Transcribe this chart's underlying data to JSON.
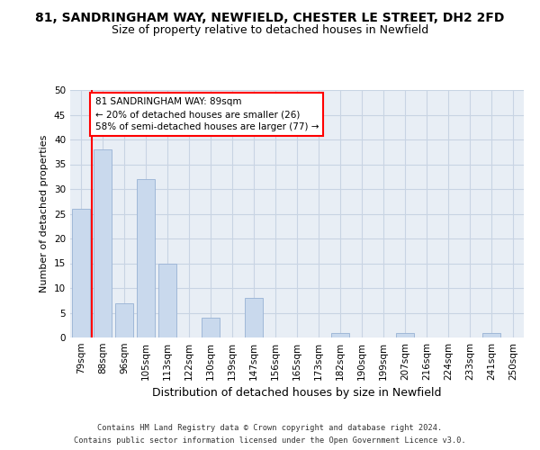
{
  "title": "81, SANDRINGHAM WAY, NEWFIELD, CHESTER LE STREET, DH2 2FD",
  "subtitle": "Size of property relative to detached houses in Newfield",
  "xlabel": "Distribution of detached houses by size in Newfield",
  "ylabel": "Number of detached properties",
  "categories": [
    "79sqm",
    "88sqm",
    "96sqm",
    "105sqm",
    "113sqm",
    "122sqm",
    "130sqm",
    "139sqm",
    "147sqm",
    "156sqm",
    "165sqm",
    "173sqm",
    "182sqm",
    "190sqm",
    "199sqm",
    "207sqm",
    "216sqm",
    "224sqm",
    "233sqm",
    "241sqm",
    "250sqm"
  ],
  "values": [
    26,
    38,
    7,
    32,
    15,
    0,
    4,
    0,
    8,
    0,
    0,
    0,
    1,
    0,
    0,
    1,
    0,
    0,
    0,
    1,
    0
  ],
  "bar_color": "#c9d9ed",
  "bar_edge_color": "#a0b8d8",
  "property_line_color": "red",
  "annotation_text": "81 SANDRINGHAM WAY: 89sqm\n← 20% of detached houses are smaller (26)\n58% of semi-detached houses are larger (77) →",
  "annotation_box_color": "white",
  "annotation_box_edge": "red",
  "ylim": [
    0,
    50
  ],
  "yticks": [
    0,
    5,
    10,
    15,
    20,
    25,
    30,
    35,
    40,
    45,
    50
  ],
  "grid_color": "#c8d4e3",
  "bg_color": "#e8eef5",
  "title_fontsize": 10,
  "subtitle_fontsize": 9,
  "ylabel_fontsize": 8,
  "xlabel_fontsize": 9,
  "tick_fontsize": 7.5,
  "annot_fontsize": 7.5,
  "footer_line1": "Contains HM Land Registry data © Crown copyright and database right 2024.",
  "footer_line2": "Contains public sector information licensed under the Open Government Licence v3.0."
}
